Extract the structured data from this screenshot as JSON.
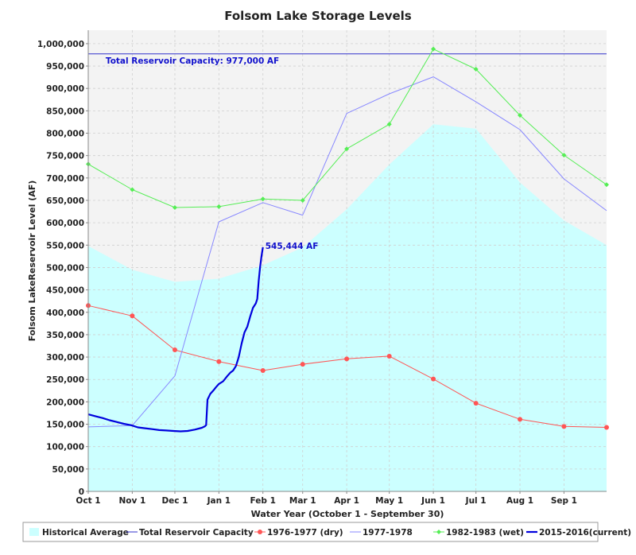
{
  "chart_data": {
    "type": "line",
    "title": "Folsom Lake Storage Levels",
    "xlabel": "Water Year (October 1 - September 30)",
    "ylabel": "Folsom LakeReservoir Level (AF)",
    "x_ticks": [
      "Oct 1",
      "Nov 1",
      "Dec 1",
      "Jan 1",
      "Feb 1",
      "Mar 1",
      "Apr 1",
      "May 1",
      "Jun 1",
      "Jul 1",
      "Aug 1",
      "Sep 1"
    ],
    "x_tick_days": [
      0,
      31,
      61,
      92,
      123,
      151,
      182,
      212,
      243,
      273,
      304,
      335
    ],
    "x_range_days": [
      0,
      365
    ],
    "y_ticks": [
      "0",
      "50,000",
      "100,000",
      "150,000",
      "200,000",
      "250,000",
      "300,000",
      "350,000",
      "400,000",
      "450,000",
      "500,000",
      "550,000",
      "600,000",
      "650,000",
      "700,000",
      "750,000",
      "800,000",
      "850,000",
      "900,000",
      "950,000",
      "1,000,000"
    ],
    "ylim": [
      0,
      1030000
    ],
    "grid": true,
    "legend_position": "bottom",
    "series": [
      {
        "name": "Historical Average",
        "type": "area",
        "color": "#ccffff",
        "x": [
          0,
          31,
          61,
          92,
          123,
          151,
          182,
          212,
          243,
          273,
          304,
          335,
          365
        ],
        "y": [
          548000,
          495000,
          468000,
          475000,
          505000,
          545000,
          630000,
          730000,
          820000,
          810000,
          690000,
          605000,
          550000
        ]
      },
      {
        "name": "Total Reservoir Capacity",
        "type": "line",
        "color": "#3333cc",
        "x": [
          0,
          365
        ],
        "y": [
          977000,
          977000
        ]
      },
      {
        "name": "1976-1977 (dry)",
        "type": "line",
        "marker": "circle",
        "color": "#ff5555",
        "x": [
          0,
          31,
          61,
          92,
          123,
          151,
          182,
          212,
          243,
          273,
          304,
          335,
          365
        ],
        "y": [
          415000,
          392000,
          316000,
          290000,
          270000,
          284000,
          296000,
          302000,
          251000,
          197000,
          161000,
          145000,
          143000
        ]
      },
      {
        "name": "1977-1978",
        "type": "line",
        "color": "#8888ff",
        "x": [
          0,
          31,
          61,
          92,
          123,
          151,
          182,
          212,
          243,
          273,
          304,
          335,
          365
        ],
        "y": [
          144000,
          147000,
          258000,
          602000,
          645000,
          617000,
          844000,
          888000,
          926000,
          870000,
          808000,
          698000,
          627000
        ]
      },
      {
        "name": "1982-1983 (wet)",
        "type": "line",
        "marker": "diamond",
        "color": "#55ee55",
        "x": [
          0,
          31,
          61,
          92,
          123,
          151,
          182,
          212,
          243,
          273,
          304,
          335,
          365
        ],
        "y": [
          731000,
          674000,
          634000,
          636000,
          653000,
          650000,
          765000,
          820000,
          988000,
          943000,
          840000,
          751000,
          685000
        ]
      },
      {
        "name": "2015-2016(current)",
        "type": "line",
        "color": "#0000dd",
        "x": [
          0,
          5,
          10,
          15,
          20,
          25,
          30,
          35,
          40,
          45,
          50,
          55,
          60,
          65,
          70,
          75,
          80,
          82,
          83,
          84,
          86,
          88,
          90,
          92,
          95,
          98,
          100,
          102,
          104,
          106,
          108,
          110,
          112,
          114,
          116,
          118,
          119,
          120,
          121,
          122,
          123
        ],
        "y": [
          172000,
          168000,
          164000,
          159000,
          155000,
          151000,
          148000,
          143000,
          141000,
          139000,
          137000,
          136000,
          135000,
          134000,
          135000,
          138000,
          142000,
          145000,
          148000,
          205000,
          218000,
          225000,
          233000,
          240000,
          246000,
          258000,
          265000,
          270000,
          280000,
          300000,
          330000,
          355000,
          368000,
          390000,
          410000,
          420000,
          430000,
          470000,
          500000,
          525000,
          545444
        ]
      }
    ],
    "annotations": [
      {
        "text": "Total Reservoir Capacity: 977,000 AF",
        "x": 5,
        "y": 977000
      },
      {
        "text": "545,444 AF",
        "x": 123,
        "y": 545444
      }
    ]
  }
}
